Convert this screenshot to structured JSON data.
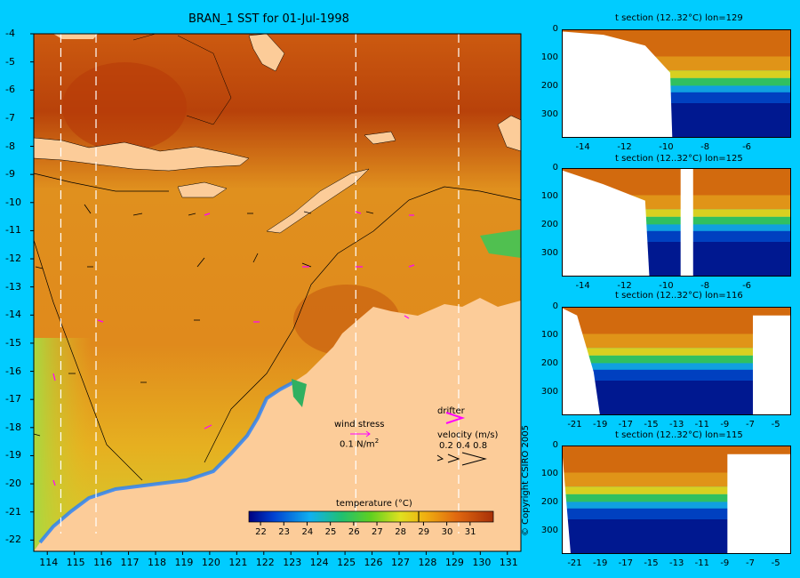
{
  "map": {
    "title": "BRAN_1 SST for 01-Jul-1998",
    "x_ticks": [
      "114",
      "115",
      "116",
      "117",
      "118",
      "119",
      "120",
      "121",
      "122",
      "123",
      "124",
      "125",
      "126",
      "127",
      "128",
      "129",
      "130",
      "131"
    ],
    "y_ticks": [
      "-4",
      "-5",
      "-6",
      "-7",
      "-8",
      "-9",
      "-10",
      "-11",
      "-12",
      "-13",
      "-14",
      "-15",
      "-16",
      "-17",
      "-18",
      "-19",
      "-20",
      "-21",
      "-22"
    ],
    "section_lons": [
      114.5,
      115.8,
      125.4,
      129.2
    ]
  },
  "legend": {
    "wind_label": "wind stress",
    "wind_value": "0.1 N/m",
    "wind_unit_sup": "2",
    "drifter_label": "drifter",
    "velocity_label": "velocity (m/s)",
    "velocity_values": "0.2 0.4 0.8"
  },
  "colorbar": {
    "label": "temperature (°C)",
    "ticks": [
      "22",
      "23",
      "24",
      "25",
      "26",
      "27",
      "28",
      "29",
      "30",
      "31"
    ],
    "range": [
      21.5,
      32
    ]
  },
  "sections": [
    {
      "title": "t section (12..32°C) lon=129",
      "x_ticks": [
        "-14",
        "-12",
        "-10",
        "-8",
        "-6"
      ],
      "y_ticks": [
        "0",
        "100",
        "200",
        "300"
      ]
    },
    {
      "title": "t section (12..32°C) lon=125",
      "x_ticks": [
        "-14",
        "-12",
        "-10",
        "-8",
        "-6"
      ],
      "y_ticks": [
        "0",
        "100",
        "200",
        "300"
      ]
    },
    {
      "title": "t section (12..32°C) lon=116",
      "x_ticks": [
        "-21",
        "-19",
        "-17",
        "-15",
        "-13",
        "-11",
        "-9",
        "-7",
        "-5"
      ],
      "y_ticks": [
        "0",
        "100",
        "200",
        "300"
      ]
    },
    {
      "title": "t section (12..32°C) lon=115",
      "x_ticks": [
        "-21",
        "-19",
        "-17",
        "-15",
        "-13",
        "-11",
        "-9",
        "-7",
        "-5"
      ],
      "y_ticks": [
        "0",
        "100",
        "200",
        "300"
      ]
    }
  ],
  "copyright": "© Copyright CSIRO 2005",
  "colors": {
    "background": "#00ccff",
    "land": "#fccc99",
    "drifter": "#ff00ff"
  }
}
